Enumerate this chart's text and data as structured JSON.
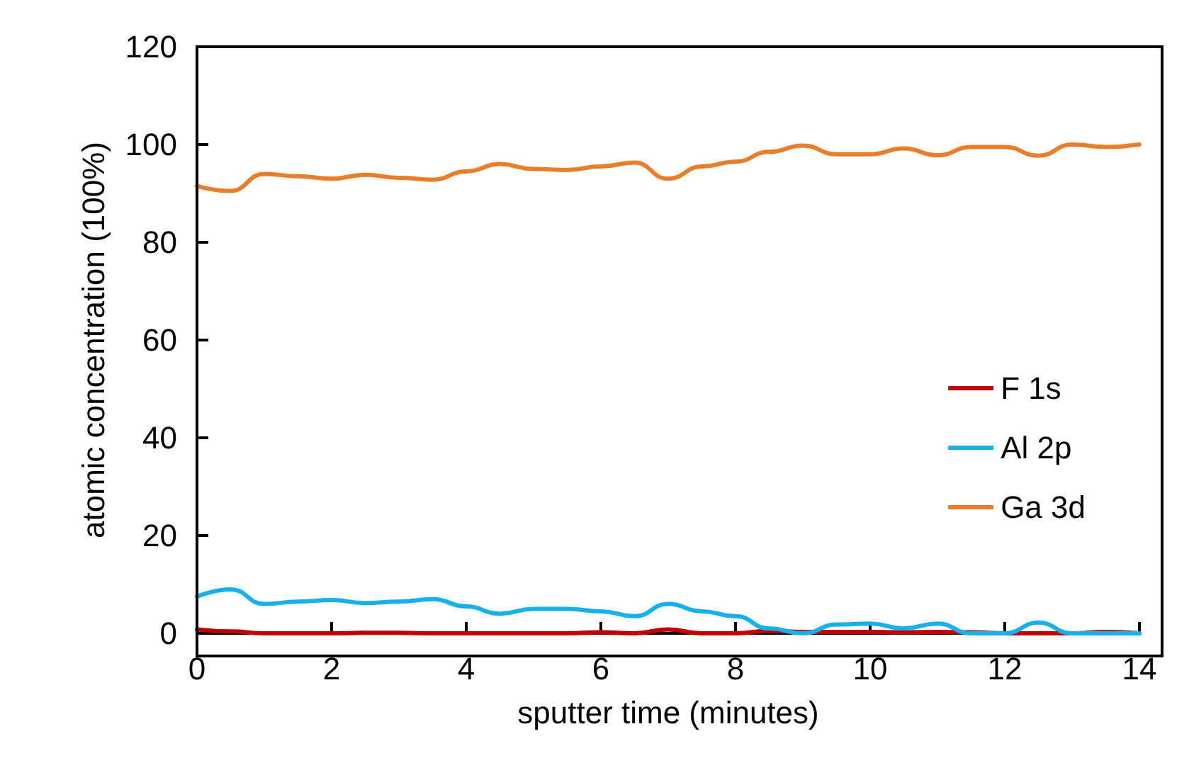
{
  "chart_data": {
    "type": "line",
    "xlabel": "sputter time (minutes)",
    "ylabel": "atomic concentration (100%)",
    "x": [
      0,
      0.5,
      1,
      1.5,
      2,
      2.5,
      3,
      3.5,
      4,
      4.5,
      5,
      5.5,
      6,
      6.5,
      7,
      7.5,
      8,
      8.5,
      9,
      9.5,
      10,
      10.5,
      11,
      11.5,
      12,
      12.5,
      13,
      13.5,
      14
    ],
    "series": [
      {
        "name": "F 1s",
        "color": "#c00000",
        "values": [
          0.8,
          0.4,
          0,
          0,
          0,
          0.1,
          0.1,
          0,
          0,
          0,
          0,
          0,
          0.2,
          0,
          0.8,
          0,
          0,
          0.5,
          0.3,
          0.3,
          0.3,
          0.2,
          0.3,
          0.2,
          0,
          0,
          0,
          0.3,
          0
        ]
      },
      {
        "name": "Al 2p",
        "color": "#16b0ea",
        "values": [
          7.5,
          9,
          6,
          6.5,
          6.8,
          6.2,
          6.5,
          7,
          5.5,
          4,
          5,
          5,
          4.5,
          3.5,
          6,
          4.5,
          3.5,
          1,
          0,
          1.8,
          2,
          1,
          2,
          0,
          0,
          2.2,
          0,
          0,
          0
        ]
      },
      {
        "name": "Ga 3d",
        "color": "#e87e2a",
        "values": [
          91.5,
          90.5,
          94,
          93.5,
          93,
          93.8,
          93.2,
          92.8,
          94.5,
          96,
          95,
          94.8,
          95.5,
          96.3,
          93,
          95.5,
          96.5,
          98.5,
          99.8,
          98,
          98,
          99.2,
          97.8,
          99.5,
          99.5,
          97.7,
          100,
          99.5,
          100
        ]
      }
    ],
    "xlim": [
      0,
      14
    ],
    "xticks": [
      0,
      2,
      4,
      6,
      8,
      10,
      12,
      14
    ],
    "ylim": [
      0,
      120
    ],
    "yticks": [
      0,
      20,
      40,
      60,
      80,
      100,
      120
    ],
    "grid": false,
    "legend": "right",
    "marker": "none",
    "line_style": "solid"
  }
}
